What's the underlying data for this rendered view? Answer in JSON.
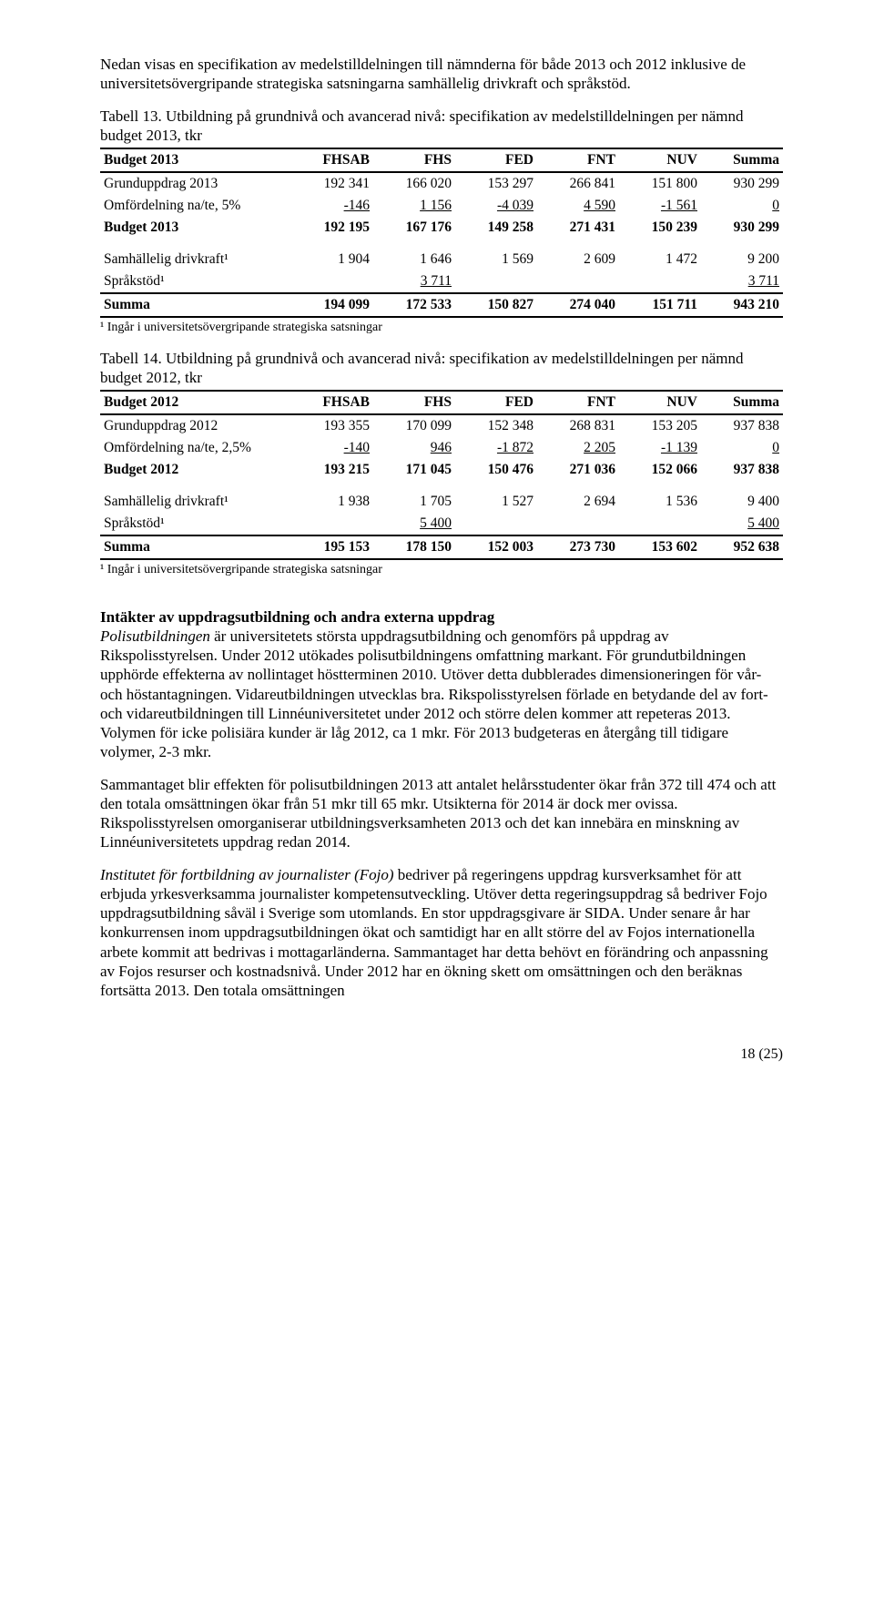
{
  "intro_para": "Nedan visas en specifikation av medelstilldelningen till nämnderna för både 2013 och 2012 inklusive de universitetsövergripande strategiska satsningarna samhällelig drivkraft och språkstöd.",
  "table13": {
    "caption": "Tabell 13. Utbildning på grundnivå och avancerad nivå: specifikation av medelstilldelningen per nämnd budget 2013, tkr",
    "headers": [
      "Budget 2013",
      "FHSAB",
      "FHS",
      "FED",
      "FNT",
      "NUV",
      "Summa"
    ],
    "rows": [
      {
        "label": "Grunduppdrag 2013",
        "vals": [
          "192 341",
          "166 020",
          "153 297",
          "266 841",
          "151 800",
          "930 299"
        ],
        "bold": false,
        "underline": false
      },
      {
        "label": "Omfördelning na/te, 5%",
        "vals": [
          "-146",
          "1 156",
          "-4 039",
          "4 590",
          "-1 561",
          "0"
        ],
        "bold": false,
        "underline": true
      },
      {
        "label": "Budget 2013",
        "vals": [
          "192 195",
          "167 176",
          "149 258",
          "271 431",
          "150 239",
          "930 299"
        ],
        "bold": true,
        "underline": false
      },
      {
        "label": "Samhällelig drivkraft¹",
        "vals": [
          "1 904",
          "1 646",
          "1 569",
          "2 609",
          "1 472",
          "9 200"
        ],
        "bold": false,
        "underline": false,
        "section_top": true
      },
      {
        "label": "Språkstöd¹",
        "vals": [
          "",
          "3 711",
          "",
          "",
          "",
          "3 711"
        ],
        "bold": false,
        "underline": true
      }
    ],
    "sum_row": {
      "label": "Summa",
      "vals": [
        "194 099",
        "172 533",
        "150 827",
        "274 040",
        "151 711",
        "943 210"
      ]
    },
    "footnote": "¹ Ingår i universitetsövergripande strategiska satsningar"
  },
  "table14": {
    "caption": "Tabell 14. Utbildning på grundnivå och avancerad nivå: specifikation av medelstilldelningen per nämnd budget 2012, tkr",
    "headers": [
      "Budget 2012",
      "FHSAB",
      "FHS",
      "FED",
      "FNT",
      "NUV",
      "Summa"
    ],
    "rows": [
      {
        "label": "Grunduppdrag 2012",
        "vals": [
          "193 355",
          "170 099",
          "152 348",
          "268 831",
          "153 205",
          "937 838"
        ],
        "bold": false,
        "underline": false
      },
      {
        "label": "Omfördelning na/te, 2,5%",
        "vals": [
          "-140",
          "946",
          "-1 872",
          "2 205",
          "-1 139",
          "0"
        ],
        "bold": false,
        "underline": true
      },
      {
        "label": "Budget 2012",
        "vals": [
          "193 215",
          "171 045",
          "150 476",
          "271 036",
          "152 066",
          "937 838"
        ],
        "bold": true,
        "underline": false
      },
      {
        "label": "Samhällelig drivkraft¹",
        "vals": [
          "1 938",
          "1 705",
          "1 527",
          "2 694",
          "1 536",
          "9 400"
        ],
        "bold": false,
        "underline": false,
        "section_top": true
      },
      {
        "label": "Språkstöd¹",
        "vals": [
          "",
          "5 400",
          "",
          "",
          "",
          "5 400"
        ],
        "bold": false,
        "underline": true
      }
    ],
    "sum_row": {
      "label": "Summa",
      "vals": [
        "195 153",
        "178 150",
        "152 003",
        "273 730",
        "153 602",
        "952 638"
      ]
    },
    "footnote": "¹ Ingår i universitetsövergripande strategiska satsningar"
  },
  "section2": {
    "heading": "Intäkter av uppdragsutbildning och andra externa uppdrag",
    "para1_lead": "Polisutbildningen",
    "para1_rest": " är universitetets största uppdragsutbildning och genomförs på uppdrag av Rikspolisstyrelsen. Under 2012 utökades polisutbildningens omfattning markant. För grundutbildningen upphörde effekterna av nollintaget höstterminen 2010. Utöver detta dubblerades dimensioneringen för vår- och höstantagningen. Vidareutbildningen utvecklas bra. Rikspolisstyrelsen förlade en betydande del av fort- och vidareutbildningen till Linnéuniversitetet under 2012 och större delen kommer att repeteras 2013. Volymen för icke polisiära kunder är låg 2012, ca 1 mkr. För 2013 budgeteras en återgång till tidigare volymer, 2-3 mkr.",
    "para2": "Sammantaget blir effekten för polisutbildningen 2013 att antalet helårsstudenter ökar från 372 till 474 och att den totala omsättningen ökar från 51 mkr till 65 mkr.  Utsikterna för 2014 är dock mer ovissa. Rikspolisstyrelsen omorganiserar utbildningsverksamheten 2013 och det kan innebära en minskning av Linnéuniversitetets uppdrag redan 2014.",
    "para3_lead": "Institutet för fortbildning av journalister (Fojo)",
    "para3_rest": " bedriver på regeringens uppdrag kursverksamhet för att erbjuda yrkesverksamma journalister kompetensutveckling. Utöver detta regeringsuppdrag så bedriver Fojo uppdragsutbildning såväl i Sverige som utomlands. En stor uppdragsgivare är SIDA. Under senare år har konkurrensen inom uppdragsutbildningen ökat och samtidigt har en allt större del av Fojos internationella arbete kommit att bedrivas i mottagarländerna. Sammantaget har detta behövt en förändring och anpassning av Fojos resurser och kostnadsnivå. Under 2012 har en ökning skett om omsättningen och den beräknas fortsätta 2013. Den totala omsättningen"
  },
  "page_number": "18 (25)",
  "col_widths": [
    "28%",
    "12%",
    "12%",
    "12%",
    "12%",
    "12%",
    "12%"
  ]
}
